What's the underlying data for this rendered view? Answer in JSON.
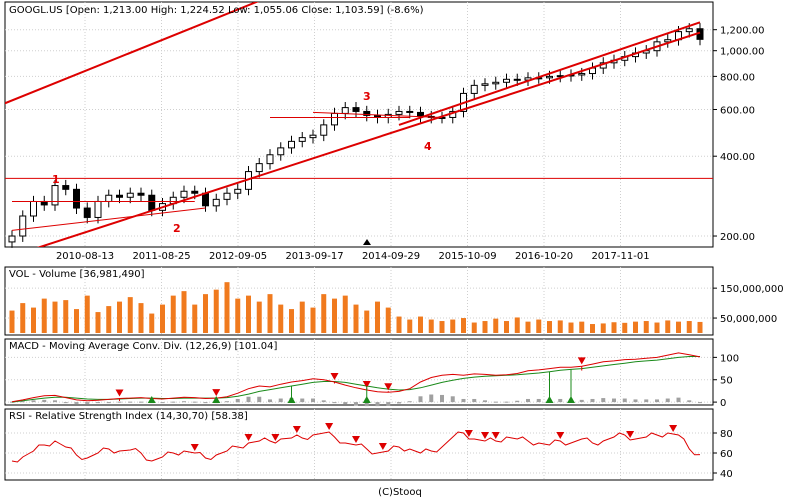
{
  "colors": {
    "trend": "#dd0000",
    "volume": "#f07a1e",
    "macd_signal": "#1a8a1a",
    "histogram": "#a0a0a0",
    "up_marker": "#1a8a1a",
    "down_marker": "#dd0000",
    "candle": "#000000"
  },
  "footer": "(C)Stooq",
  "chart_data": [
    {
      "type": "candlestick",
      "title": "GOOGL.US [Open: 1,213.00  High: 1,224.52  Low: 1,055.06  Close: 1,103.59] (-8.6%)",
      "scale": "log",
      "ylim": [
        185,
        1500
      ],
      "yticks": [
        {
          "v": 200,
          "t": "200.00"
        },
        {
          "v": 400,
          "t": "400.00"
        },
        {
          "v": 600,
          "t": "600.00"
        },
        {
          "v": 800,
          "t": "800.00"
        },
        {
          "v": 1000,
          "t": "1,000.00"
        },
        {
          "v": 1200,
          "t": "1,200.00"
        }
      ],
      "xticks": [
        "2010-08-13",
        "2011-08-25",
        "2012-09-05",
        "2013-09-17",
        "2014-09-29",
        "2015-10-09",
        "2016-10-20",
        "2017-11-01"
      ],
      "close": [
        200,
        238,
        270,
        262,
        310,
        300,
        255,
        235,
        270,
        285,
        280,
        290,
        285,
        250,
        265,
        280,
        295,
        290,
        260,
        275,
        290,
        300,
        350,
        375,
        405,
        430,
        455,
        470,
        480,
        525,
        580,
        610,
        590,
        570,
        560,
        575,
        590,
        585,
        565,
        560,
        560,
        590,
        690,
        740,
        750,
        760,
        780,
        775,
        790,
        790,
        800,
        805,
        810,
        820,
        860,
        900,
        920,
        950,
        980,
        1000,
        1080,
        1100,
        1180,
        1210,
        1103.59
      ],
      "annotations": [
        "1",
        "2",
        "3",
        "4"
      ],
      "hline": 330,
      "trendlines": [
        [
          [
            0,
            270
          ],
          [
            17,
            270
          ]
        ],
        [
          [
            0,
            210
          ],
          [
            18,
            255
          ]
        ],
        [
          [
            0,
            168
          ],
          [
            64,
            1170
          ]
        ],
        [
          [
            -3,
            580
          ],
          [
            64,
            7200
          ]
        ],
        [
          [
            28,
            585
          ],
          [
            40,
            560
          ]
        ],
        [
          [
            36,
            525
          ],
          [
            64,
            1280
          ]
        ],
        [
          [
            24,
            560
          ],
          [
            37,
            560
          ]
        ]
      ]
    },
    {
      "type": "bar",
      "title": "VOL - Volume [36,981,490]",
      "ylim": [
        0,
        200000000
      ],
      "yticks": [
        {
          "v": 50000000,
          "t": "50,000,000"
        },
        {
          "v": 150000000,
          "t": "150,000,000"
        }
      ],
      "values": [
        75,
        100,
        85,
        115,
        105,
        110,
        80,
        125,
        70,
        90,
        105,
        120,
        100,
        65,
        95,
        125,
        140,
        95,
        130,
        145,
        170,
        115,
        125,
        105,
        130,
        95,
        80,
        105,
        85,
        130,
        115,
        125,
        95,
        75,
        105,
        85,
        55,
        45,
        55,
        45,
        40,
        45,
        50,
        35,
        40,
        48,
        40,
        52,
        38,
        45,
        40,
        42,
        35,
        38,
        30,
        32,
        36,
        34,
        38,
        40,
        35,
        42,
        38,
        40,
        37
      ]
    },
    {
      "type": "line",
      "title": "MACD - Moving Average Conv. Div. (12,26,9) [101.04]",
      "ylim": [
        -2,
        112
      ],
      "yticks": [
        {
          "v": 0,
          "t": "0"
        },
        {
          "v": 50,
          "t": "50"
        },
        {
          "v": 100,
          "t": "100"
        }
      ],
      "macd": [
        1,
        5,
        10,
        14,
        15,
        10,
        5,
        3,
        4,
        6,
        8,
        9,
        10,
        8,
        7,
        9,
        11,
        10,
        8,
        9,
        12,
        20,
        30,
        36,
        34,
        40,
        45,
        48,
        52,
        50,
        45,
        38,
        32,
        27,
        23,
        22,
        24,
        30,
        45,
        55,
        60,
        62,
        60,
        63,
        62,
        60,
        61,
        64,
        70,
        72,
        75,
        78,
        78,
        80,
        85,
        90,
        92,
        95,
        96,
        98,
        100,
        105,
        110,
        106,
        101.04
      ],
      "signal": [
        0,
        3,
        6,
        9,
        11,
        11,
        9,
        7,
        6,
        6,
        7,
        8,
        9,
        9,
        8,
        8,
        9,
        9,
        9,
        9,
        10,
        13,
        18,
        24,
        28,
        32,
        36,
        40,
        44,
        46,
        46,
        44,
        40,
        36,
        32,
        29,
        27,
        28,
        32,
        38,
        44,
        49,
        53,
        56,
        58,
        59,
        60,
        61,
        63,
        65,
        68,
        71,
        73,
        75,
        78,
        81,
        84,
        87,
        90,
        92,
        94,
        97,
        100,
        102,
        102
      ],
      "histogram": [
        1,
        2,
        4,
        5,
        4,
        -1,
        -4,
        -4,
        -2,
        0,
        1,
        1,
        1,
        -1,
        -1,
        1,
        2,
        1,
        -1,
        0,
        2,
        7,
        12,
        12,
        6,
        8,
        9,
        8,
        8,
        4,
        -1,
        -6,
        -8,
        -9,
        -9,
        -7,
        -3,
        2,
        13,
        17,
        16,
        13,
        7,
        7,
        4,
        1,
        1,
        3,
        7,
        7,
        7,
        7,
        5,
        5,
        7,
        9,
        8,
        8,
        6,
        6,
        6,
        8,
        10,
        4,
        -1
      ],
      "down_markers": [
        16,
        29,
        47,
        52,
        55,
        83
      ],
      "up_markers": [
        21,
        30,
        40,
        52,
        78,
        81
      ]
    },
    {
      "type": "line",
      "title": "RSI - Relative Strength Index (14,30,70) [58.38]",
      "ylim": [
        35,
        95
      ],
      "yticks": [
        {
          "v": 40,
          "t": "40"
        },
        {
          "v": 60,
          "t": "60"
        },
        {
          "v": 80,
          "t": "80"
        }
      ],
      "values": [
        52,
        56,
        62,
        68,
        72,
        66,
        58,
        55,
        60,
        64,
        62,
        63,
        60,
        52,
        56,
        60,
        62,
        60,
        55,
        58,
        62,
        66,
        70,
        72,
        72,
        74,
        75,
        75,
        78,
        80,
        76,
        70,
        68,
        64,
        60,
        62,
        66,
        64,
        60,
        62,
        66,
        76,
        80,
        74,
        72,
        72,
        76,
        74,
        72,
        70,
        68,
        72,
        70,
        74,
        70,
        72,
        76,
        78,
        74,
        76,
        78,
        80,
        78,
        64,
        58.38
      ],
      "down_markers": [
        34,
        44,
        49,
        53,
        59,
        64,
        69,
        85,
        88,
        90,
        102,
        115,
        123
      ]
    }
  ]
}
